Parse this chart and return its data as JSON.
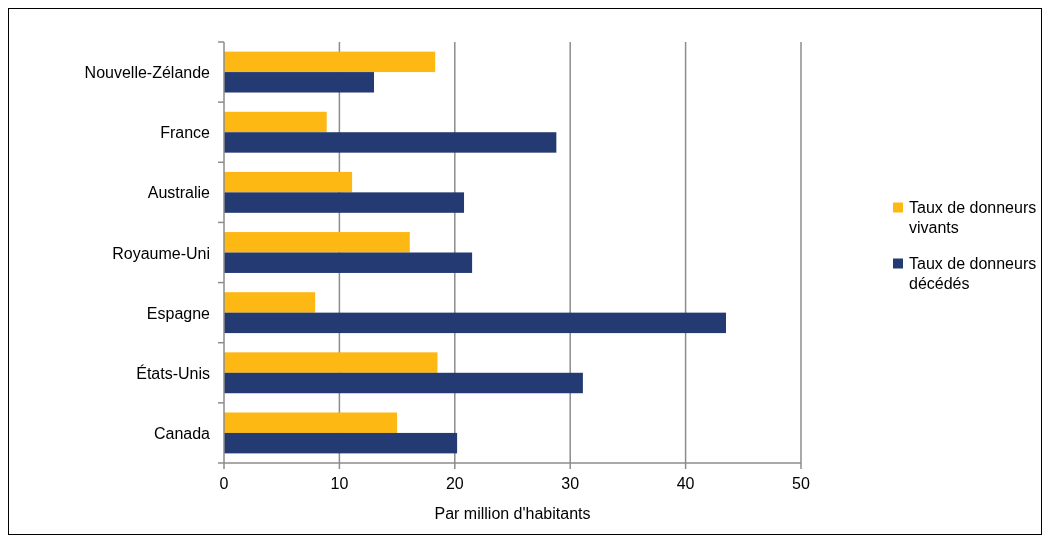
{
  "chart_data": {
    "type": "bar",
    "orientation": "horizontal",
    "xlabel": "Par million d'habitants",
    "categories": [
      "Nouvelle-Zélande",
      "France",
      "Australie",
      "Royaume-Uni",
      "Espagne",
      "États-Unis",
      "Canada"
    ],
    "series": [
      {
        "name": "Taux de donneurs vivants",
        "color": "#fdb813",
        "values": [
          18.3,
          8.9,
          11.1,
          16.1,
          7.9,
          18.5,
          15.0
        ]
      },
      {
        "name": "Taux de donneurs décédés",
        "color": "#243a73",
        "values": [
          13.0,
          28.8,
          20.8,
          21.5,
          43.5,
          31.1,
          20.2
        ]
      }
    ],
    "xlim": [
      0,
      50
    ],
    "xticks": [
      0,
      10,
      20,
      30,
      40,
      50
    ],
    "grid": "x",
    "legend": "right"
  }
}
